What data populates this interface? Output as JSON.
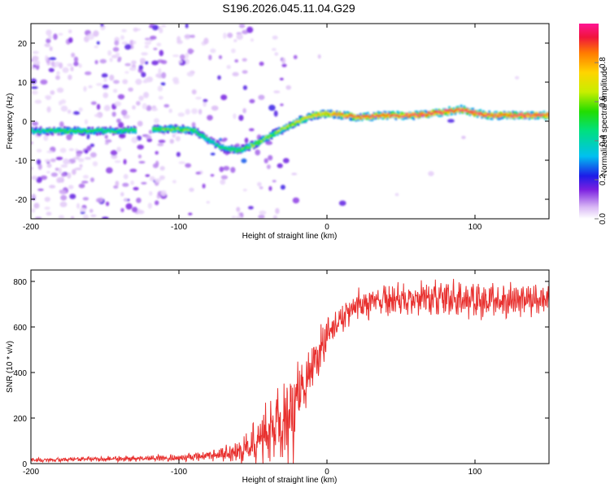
{
  "title": "S196.2026.045.11.04.G29",
  "chart_data": [
    {
      "type": "heatmap",
      "name": "spectrogram",
      "xlabel": "Height of straight line (km)",
      "ylabel": "Frequency (Hz)",
      "xlim": [
        -200,
        150
      ],
      "ylim": [
        -25,
        25
      ],
      "xticks": [
        -200,
        -100,
        0,
        100
      ],
      "yticks": [
        -20,
        -10,
        0,
        10,
        20
      ],
      "colorbar": {
        "label": "Normalized spectral amplitude",
        "range": [
          0,
          1
        ],
        "ticks": [
          0.0,
          0.2,
          0.4,
          0.6,
          0.8
        ]
      },
      "ridge": {
        "x": [
          -200,
          -170,
          -140,
          -120,
          -100,
          -90,
          -80,
          -70,
          -60,
          -50,
          -40,
          -30,
          -20,
          -10,
          0,
          10,
          20,
          40,
          60,
          80,
          90,
          100,
          110,
          150
        ],
        "y": [
          -2.5,
          -2.5,
          -2.5,
          -2,
          -2,
          -2.5,
          -5,
          -7,
          -7.5,
          -6,
          -4,
          -2,
          0,
          1.5,
          2,
          1.5,
          1,
          1.5,
          1.5,
          2.5,
          3,
          2,
          1.5,
          1.5
        ],
        "amplitude": [
          0.4,
          0.5,
          0.45,
          0.5,
          0.55,
          0.5,
          0.4,
          0.45,
          0.5,
          0.55,
          0.55,
          0.6,
          0.65,
          0.7,
          0.75,
          0.8,
          0.85,
          0.9,
          0.92,
          0.95,
          0.95,
          0.92,
          0.9,
          0.9
        ]
      }
    },
    {
      "type": "line",
      "name": "snr",
      "xlabel": "Height of straight line (km)",
      "ylabel": "SNR (10 * v/v)",
      "xlim": [
        -200,
        150
      ],
      "ylim": [
        0,
        850
      ],
      "xticks": [
        -200,
        -100,
        0,
        100
      ],
      "yticks": [
        0,
        200,
        400,
        600,
        800
      ],
      "color": "#e8302e",
      "envelope": {
        "x": [
          -200,
          -150,
          -100,
          -80,
          -70,
          -60,
          -50,
          -40,
          -35,
          -30,
          -25,
          -20,
          -15,
          -10,
          -5,
          0,
          10,
          20,
          30,
          50,
          80,
          100,
          120,
          150
        ],
        "base": [
          15,
          20,
          25,
          35,
          40,
          55,
          80,
          130,
          160,
          180,
          200,
          260,
          330,
          420,
          490,
          560,
          640,
          690,
          710,
          720,
          730,
          720,
          715,
          720
        ],
        "spread": [
          12,
          15,
          20,
          30,
          45,
          70,
          120,
          180,
          250,
          300,
          280,
          260,
          200,
          160,
          130,
          90,
          80,
          90,
          100,
          100,
          100,
          110,
          100,
          80
        ]
      }
    }
  ]
}
